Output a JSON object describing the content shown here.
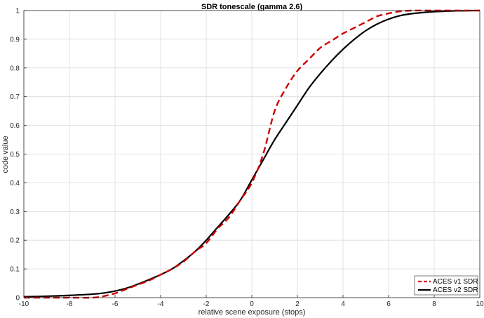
{
  "chart_data": {
    "type": "line",
    "title": "SDR tonescale (gamma 2.6)",
    "xlabel": "relative scene exposure (stops)",
    "ylabel": "code value",
    "xlim": [
      -10,
      10
    ],
    "ylim": [
      0,
      1
    ],
    "xticks": [
      "-10",
      "-8",
      "-6",
      "-4",
      "-2",
      "0",
      "2",
      "4",
      "6",
      "8",
      "10"
    ],
    "yticks": [
      "0",
      "0.1",
      "0.2",
      "0.3",
      "0.4",
      "0.5",
      "0.6",
      "0.7",
      "0.8",
      "0.9",
      "1"
    ],
    "grid": true,
    "legend_position": "bottom-right",
    "series": [
      {
        "name": "ACES v1 SDR",
        "color": "#cc0000",
        "style": "dashed",
        "x": [
          -10,
          -9,
          -8,
          -7,
          -6.5,
          -6,
          -5.5,
          -5,
          -4.5,
          -4,
          -3.5,
          -3,
          -2.5,
          -2,
          -1.5,
          -1,
          -0.5,
          0,
          0.5,
          1,
          1.5,
          2,
          2.5,
          3,
          3.5,
          4,
          4.5,
          5,
          5.5,
          6,
          6.5,
          7,
          7.5,
          8,
          9,
          10
        ],
        "y": [
          0.0,
          0.0,
          0.0,
          0.0,
          0.005,
          0.015,
          0.03,
          0.045,
          0.06,
          0.08,
          0.1,
          0.125,
          0.16,
          0.19,
          0.24,
          0.28,
          0.34,
          0.4,
          0.5,
          0.65,
          0.73,
          0.79,
          0.83,
          0.87,
          0.895,
          0.92,
          0.94,
          0.96,
          0.98,
          0.99,
          0.997,
          1.0,
          1.0,
          1.0,
          1.0,
          1.0
        ]
      },
      {
        "name": "ACES v2 SDR",
        "color": "#000000",
        "style": "solid",
        "x": [
          -10,
          -9,
          -8,
          -7,
          -6.5,
          -6,
          -5.5,
          -5,
          -4.5,
          -4,
          -3.5,
          -3,
          -2.5,
          -2,
          -1.5,
          -1,
          -0.5,
          0,
          0.5,
          1,
          1.5,
          2,
          2.5,
          3,
          3.5,
          4,
          4.5,
          5,
          5.5,
          6,
          6.5,
          7,
          7.5,
          8,
          9,
          10
        ],
        "y": [
          0.003,
          0.005,
          0.008,
          0.012,
          0.016,
          0.023,
          0.033,
          0.047,
          0.063,
          0.08,
          0.1,
          0.128,
          0.16,
          0.2,
          0.245,
          0.29,
          0.34,
          0.41,
          0.48,
          0.55,
          0.61,
          0.67,
          0.73,
          0.78,
          0.825,
          0.865,
          0.9,
          0.93,
          0.953,
          0.97,
          0.982,
          0.989,
          0.993,
          0.996,
          0.999,
          1.0
        ]
      }
    ]
  }
}
